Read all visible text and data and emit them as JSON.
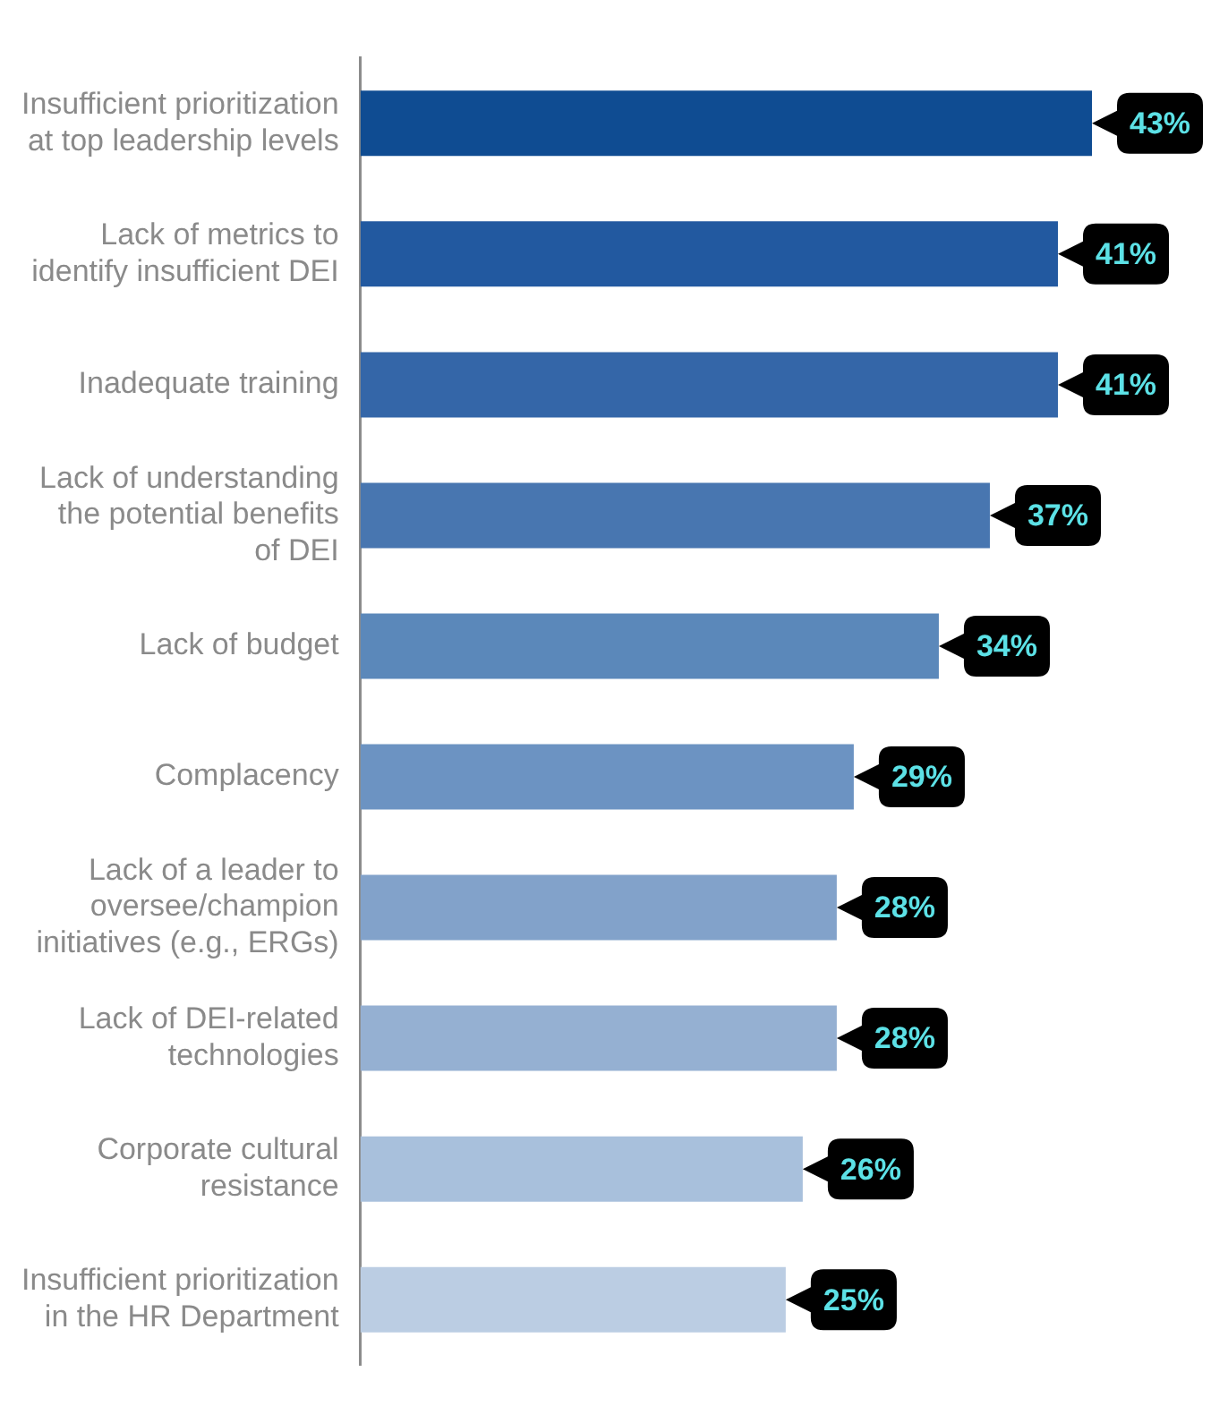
{
  "chart_data": {
    "type": "bar",
    "orientation": "horizontal",
    "categories": [
      "Insufficient prioritization\nat top leadership levels",
      "Lack of metrics to\nidentify insufficient DEI",
      "Inadequate training",
      "Lack of understanding\nthe potential benefits\nof DEI",
      "Lack of budget",
      "Complacency",
      "Lack of a leader to\noversee/champion\ninitiatives (e.g., ERGs)",
      "Lack of DEI-related\ntechnologies",
      "Corporate cultural\nresistance",
      "Insufficient prioritization\nin the HR Department"
    ],
    "values": [
      43,
      41,
      41,
      37,
      34,
      29,
      28,
      28,
      26,
      25
    ],
    "colors": [
      "#0f4c92",
      "#2259a0",
      "#3466a8",
      "#4876b0",
      "#5b88ba",
      "#6c93c2",
      "#82a2ca",
      "#95b0d2",
      "#a8c0dc",
      "#bbcde3"
    ],
    "value_labels": [
      "43%",
      "41%",
      "41%",
      "37%",
      "34%",
      "29%",
      "28%",
      "28%",
      "26%",
      "25%"
    ],
    "legend": false
  }
}
